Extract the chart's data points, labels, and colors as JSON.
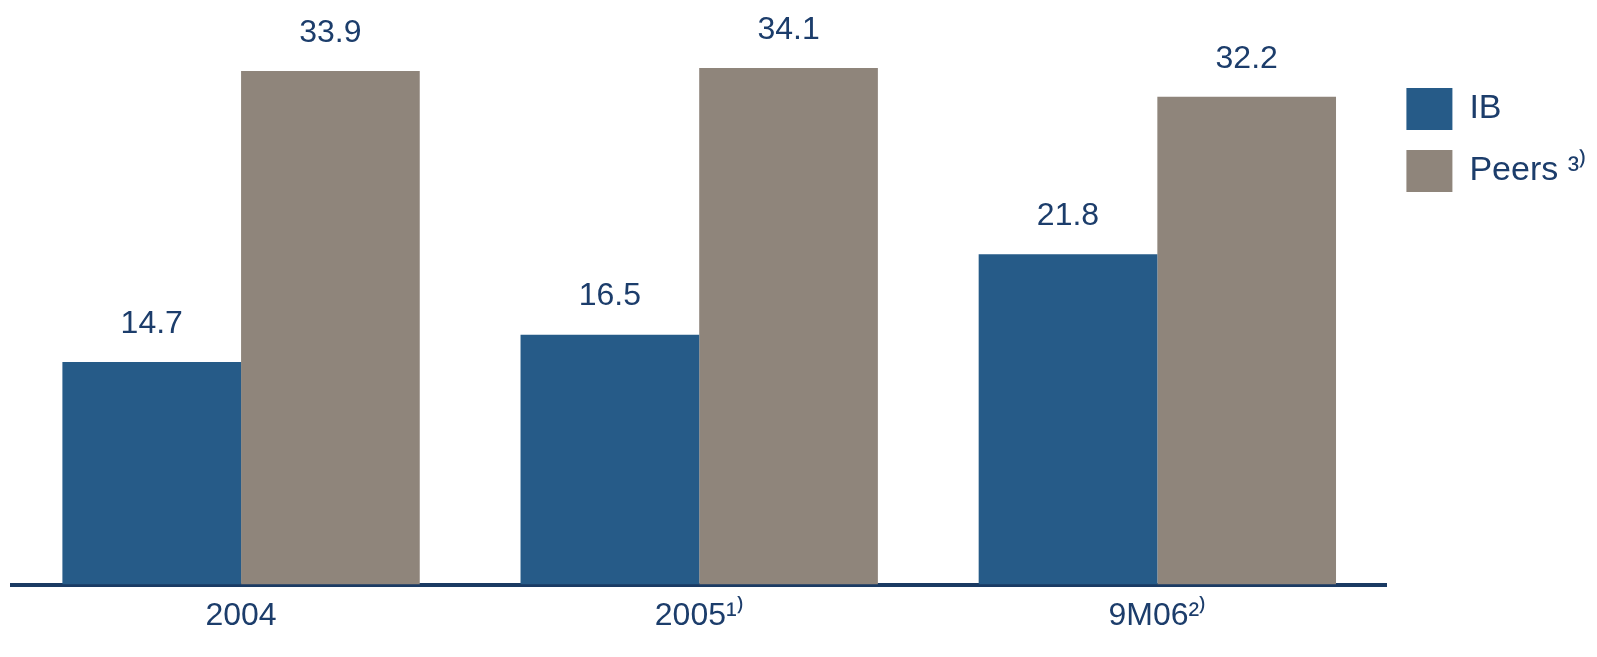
{
  "chart_data": {
    "type": "bar",
    "categories": [
      "2004",
      "2005¹⁾",
      "9M06²⁾"
    ],
    "series": [
      {
        "name": "IB",
        "color": "#265b88",
        "values": [
          14.7,
          16.5,
          21.8
        ]
      },
      {
        "name": "Peers ³⁾",
        "color": "#8f857b",
        "values": [
          33.9,
          34.1,
          32.2
        ]
      }
    ],
    "tick_labels": "x",
    "data_labels": true,
    "legend": "top right"
  }
}
